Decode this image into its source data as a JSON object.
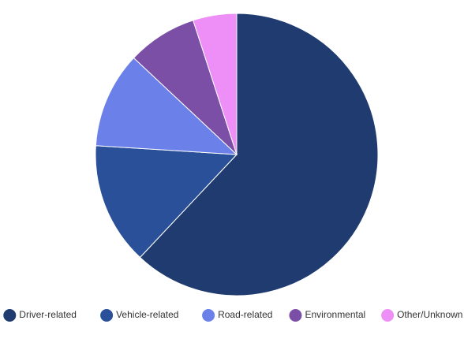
{
  "chart_data": {
    "type": "pie",
    "categories": [
      "Driver-related",
      "Vehicle-related",
      "Road-related",
      "Environmental",
      "Other/Unknown"
    ],
    "values": [
      62,
      14,
      11,
      8,
      5
    ],
    "colors": [
      "#1f3b70",
      "#2a5099",
      "#6b80e8",
      "#7b4fa6",
      "#ee8ff7"
    ],
    "legend": "bottom"
  }
}
